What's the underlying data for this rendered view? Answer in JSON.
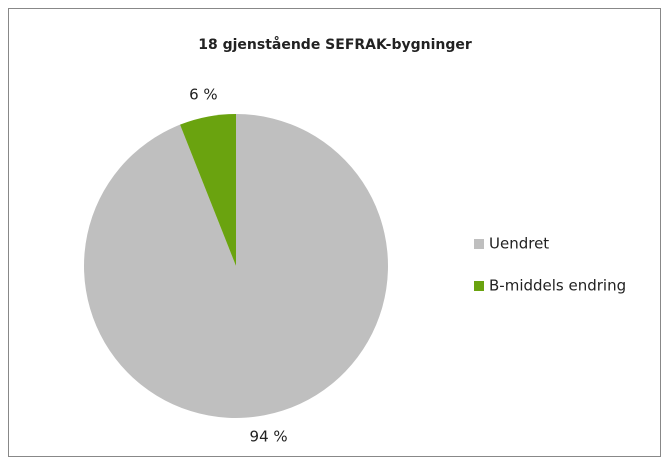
{
  "chart_data": {
    "type": "pie",
    "title": "18 gjenstående SEFRAK-bygninger",
    "categories": [
      "Uendret",
      "B-middels endring"
    ],
    "values": [
      94,
      6
    ],
    "value_labels": [
      "94 %",
      "6 %"
    ],
    "colors": [
      "#bfbfbf",
      "#6aa30f"
    ],
    "legend": "right"
  }
}
